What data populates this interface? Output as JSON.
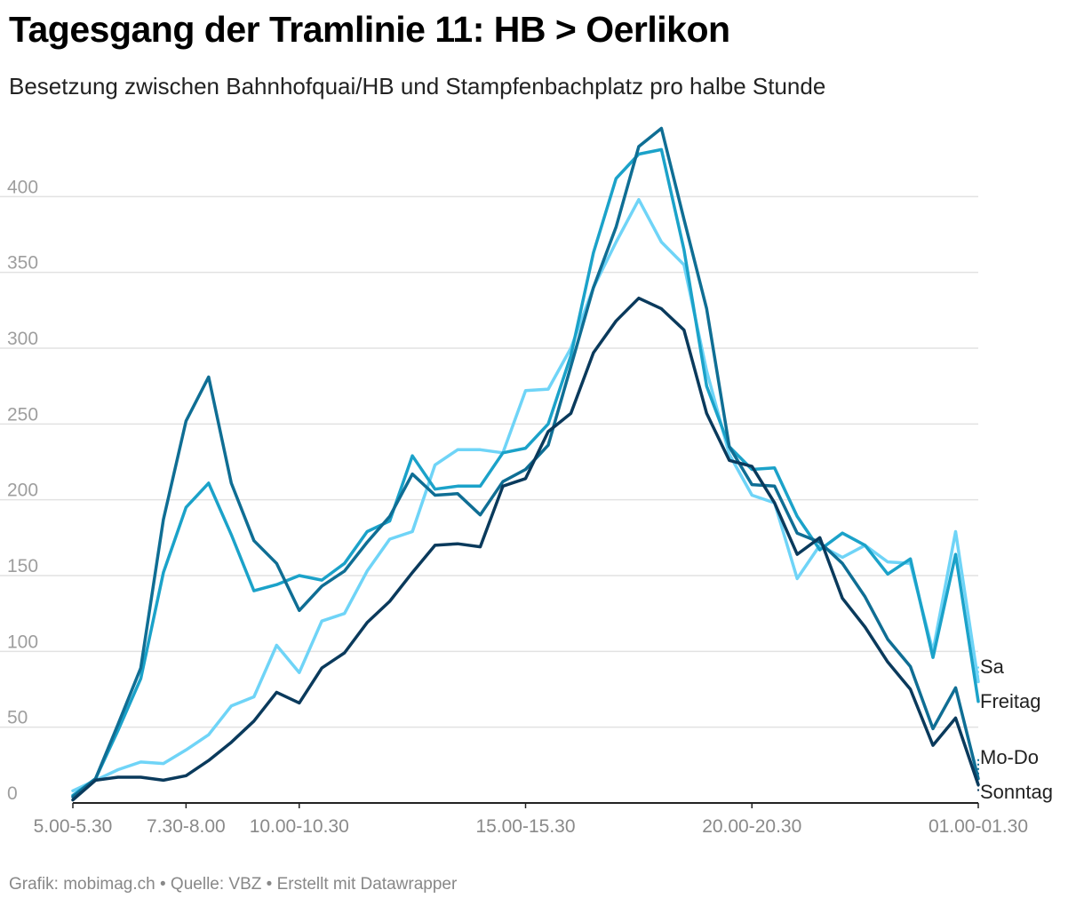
{
  "header": {
    "title": "Tagesgang der Tramlinie 11: HB > Oerlikon",
    "subtitle": "Besetzung zwischen Bahnhofquai/HB und Stampfenbachplatz pro halbe Stunde"
  },
  "footer": {
    "text": "Grafik: mobimag.ch • Quelle: VBZ • Erstellt mit Datawrapper"
  },
  "chart_data": {
    "type": "line",
    "title": "Tagesgang der Tramlinie 11: HB > Oerlikon",
    "subtitle": "Besetzung zwischen Bahnhofquai/HB und Stampfenbachplatz pro halbe Stunde",
    "xlabel": "",
    "ylabel": "",
    "ylim": [
      0,
      450
    ],
    "yticks": [
      0,
      50,
      100,
      150,
      200,
      250,
      300,
      350,
      400
    ],
    "grid": true,
    "xtick_labels": [
      {
        "index": 0,
        "label": "5.00-5.30"
      },
      {
        "index": 5,
        "label": "7.30-8.00"
      },
      {
        "index": 10,
        "label": "10.00-10.30"
      },
      {
        "index": 20,
        "label": "15.00-15.30"
      },
      {
        "index": 30,
        "label": "20.00-20.30"
      },
      {
        "index": 40,
        "label": "01.00-01.30"
      }
    ],
    "series": [
      {
        "name": "Sa",
        "color": "#6fd4f7",
        "values": [
          8,
          15,
          22,
          27,
          26,
          35,
          45,
          64,
          70,
          104,
          86,
          120,
          125,
          153,
          174,
          179,
          223,
          233,
          233,
          231,
          272,
          273,
          300,
          340,
          370,
          398,
          370,
          355,
          285,
          230,
          203,
          198,
          148,
          170,
          162,
          170,
          159,
          158,
          100,
          179,
          80
        ]
      },
      {
        "name": "Freitag",
        "color": "#1ba2c9",
        "values": [
          5,
          16,
          48,
          82,
          152,
          195,
          211,
          177,
          140,
          144,
          150,
          147,
          158,
          179,
          186,
          229,
          207,
          209,
          209,
          231,
          234,
          250,
          295,
          363,
          412,
          428,
          431,
          365,
          275,
          235,
          220,
          221,
          189,
          167,
          178,
          170,
          151,
          161,
          96,
          164,
          67
        ]
      },
      {
        "name": "Mo-Do",
        "color": "#0f6e94",
        "values": [
          4,
          16,
          52,
          89,
          187,
          252,
          281,
          211,
          173,
          158,
          127,
          143,
          153,
          172,
          189,
          217,
          203,
          204,
          190,
          212,
          220,
          236,
          288,
          340,
          380,
          433,
          445,
          385,
          326,
          235,
          210,
          209,
          178,
          172,
          158,
          136,
          108,
          90,
          49,
          76,
          16
        ]
      },
      {
        "name": "Sonntag",
        "color": "#0a3a5c",
        "values": [
          2,
          15,
          17,
          17,
          15,
          18,
          28,
          40,
          54,
          73,
          66,
          89,
          99,
          119,
          133,
          152,
          170,
          171,
          169,
          209,
          214,
          245,
          257,
          297,
          318,
          333,
          326,
          312,
          257,
          226,
          222,
          198,
          164,
          175,
          135,
          116,
          93,
          75,
          38,
          56,
          12
        ]
      }
    ]
  }
}
